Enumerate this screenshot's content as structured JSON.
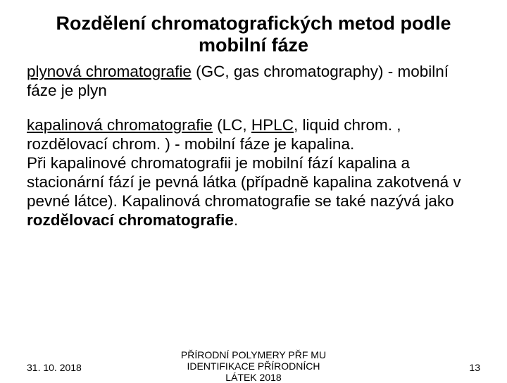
{
  "title": "Rozdělení chromatografických metod podle mobilní fáze",
  "para1": {
    "term": "plynová chromatografie",
    "rest": " (GC, gas chromatography) - mobilní fáze je plyn"
  },
  "para2": {
    "term": "kapalinová chromatografie",
    "mid1": " (LC, ",
    "hplc": "HPLC",
    "mid2": ", liquid chrom. , rozdělovací chrom. ) - mobilní fáze je kapalina.",
    "cont": "Při kapalinové chromatografii je mobilní fází kapalina a stacionární fází je pevná látka (případně kapalina zakotvená v pevné látce). Kapalinová chromatografie se také nazývá jako ",
    "bold_end": "rozdělovací chromatografie",
    "period": "."
  },
  "footer": {
    "date": "31. 10. 2018",
    "center_line1": "PŘÍRODNÍ POLYMERY PŘF MU",
    "center_line2": "IDENTIFIKACE PŘÍRODNÍCH",
    "center_line3": "LÁTEK 2018",
    "page": "13"
  }
}
